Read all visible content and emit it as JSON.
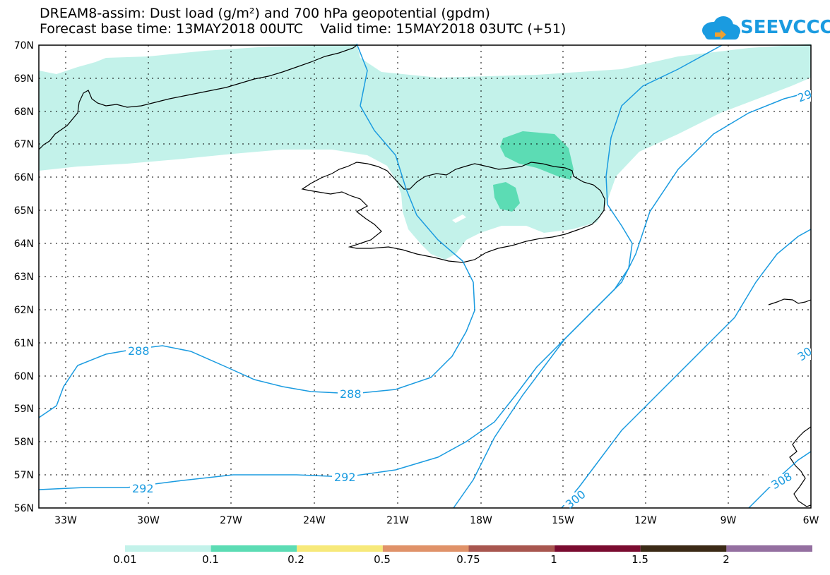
{
  "title": {
    "line1": "DREAM8-assim: Dust load (g/m²) and 700 hPa geopotential (gpdm)",
    "line2": "Forecast base time: 13MAY2018 00UTC    Valid time: 15MAY2018 03UTC (+51)"
  },
  "logo": {
    "text": "SEEVCCC",
    "icon": "cloud-icon"
  },
  "axes": {
    "lat_labels": [
      "70N",
      "69N",
      "68N",
      "67N",
      "66N",
      "65N",
      "64N",
      "63N",
      "62N",
      "61N",
      "60N",
      "59N",
      "58N",
      "57N",
      "56N"
    ],
    "lon_labels": [
      "33W",
      "30W",
      "27W",
      "24W",
      "21W",
      "18W",
      "15W",
      "12W",
      "9W",
      "6W"
    ]
  },
  "contours": {
    "labels": [
      "288",
      "288",
      "292",
      "292",
      "300",
      "308",
      "29",
      "30"
    ]
  },
  "colorbar": {
    "colors": [
      "#c3f2ea",
      "#5cdcb4",
      "#f7e97a",
      "#e09269",
      "#a8564f",
      "#7a0b30",
      "#3b2a16",
      "#946fa0"
    ],
    "labels": [
      "0.01",
      "0.1",
      "0.2",
      "0.5",
      "0.75",
      "1",
      "1.5",
      "2"
    ]
  },
  "colors": {
    "contour": "#1a9be0",
    "coast": "#000000",
    "dust_low": "#c3f2ea",
    "dust_mid": "#5cdcb4"
  }
}
